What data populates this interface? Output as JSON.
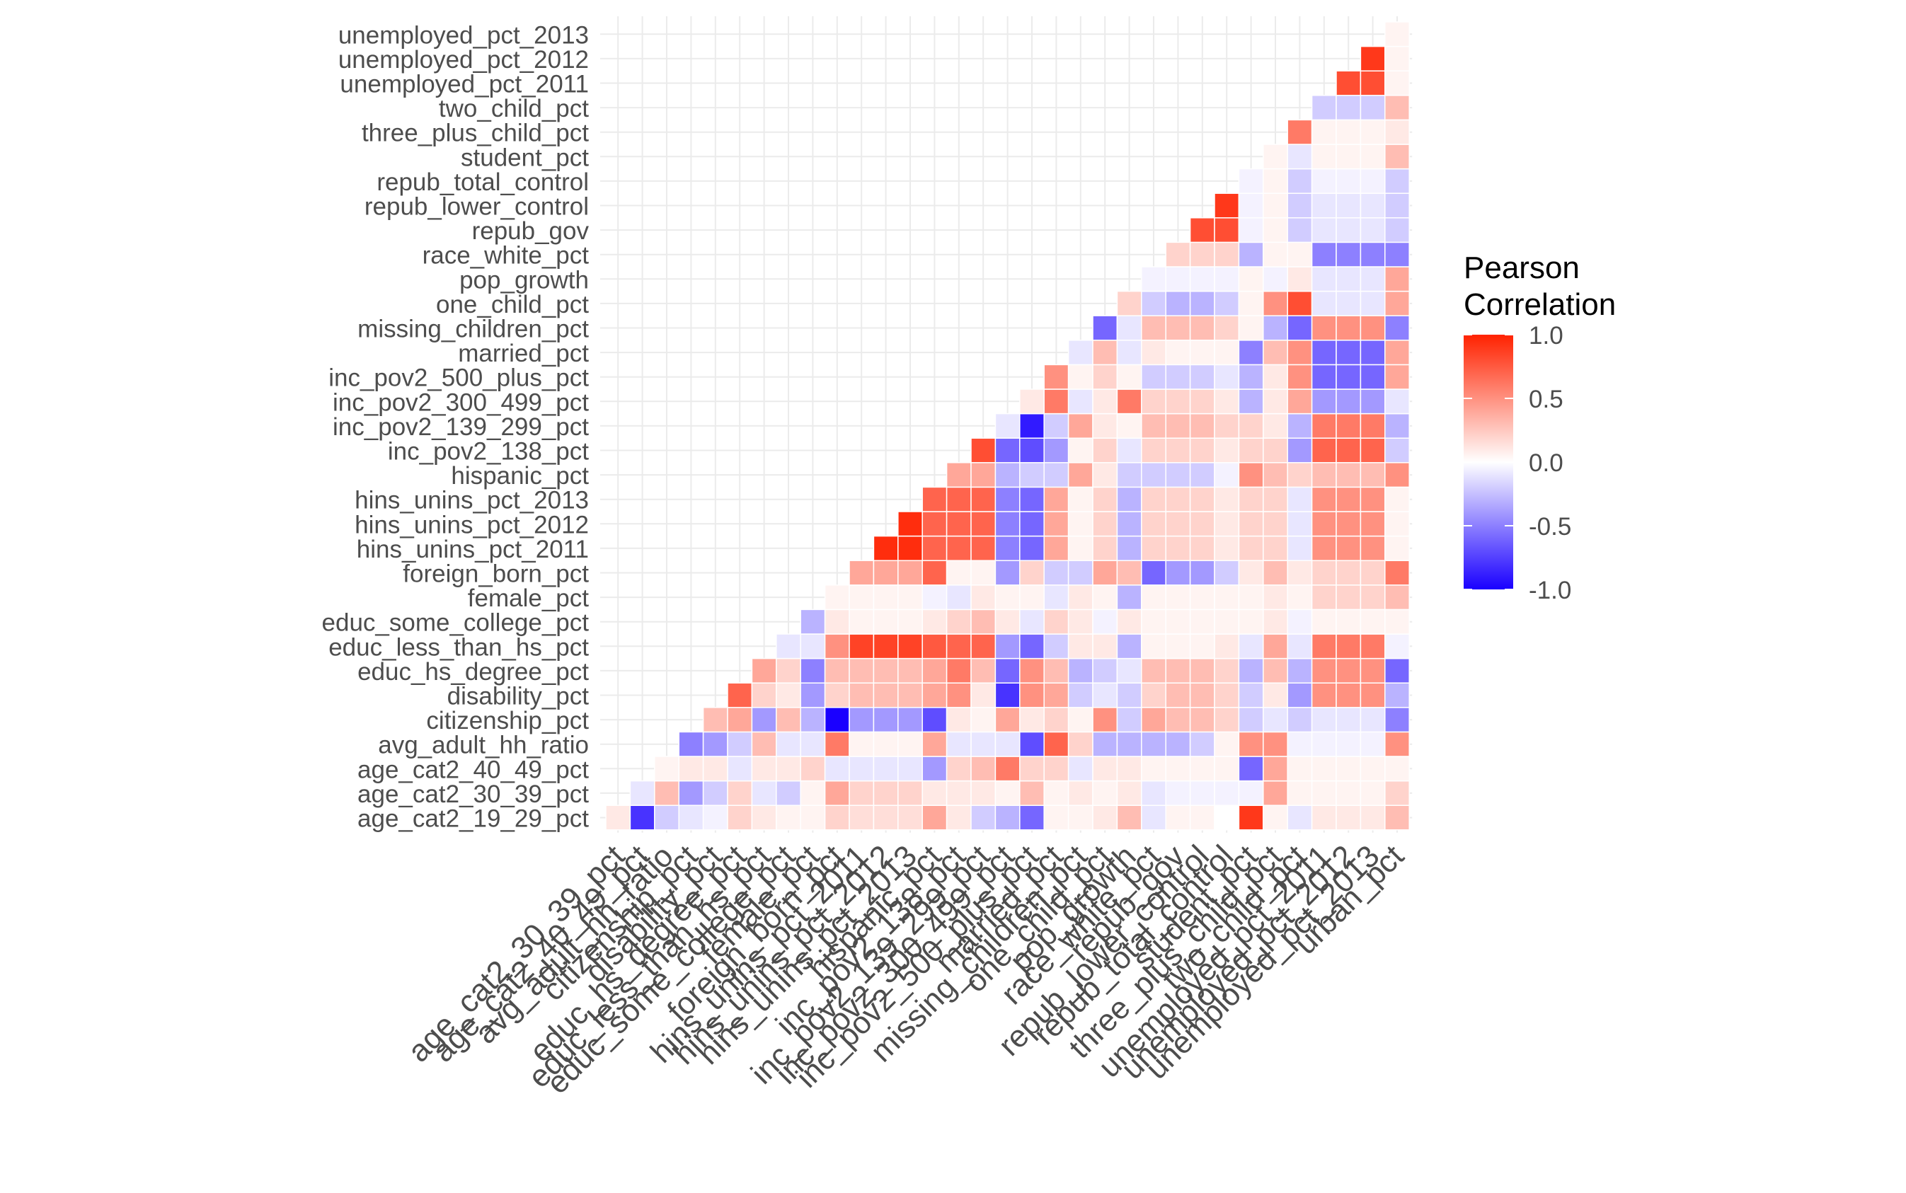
{
  "chart_data": {
    "type": "heatmap",
    "title": "",
    "xlabel": "",
    "ylabel": "",
    "legend": {
      "title_lines": [
        "Pearson",
        "Correlation"
      ],
      "ticks": [
        "1.0",
        "0.5",
        "0.0",
        "-0.5",
        "-1.0"
      ],
      "tick_values": [
        1.0,
        0.5,
        0.0,
        -0.5,
        -1.0
      ],
      "range": [
        -1,
        1
      ],
      "low_color": "#1a00ff",
      "mid_color": "#ffffff",
      "high_color": "#ff2200",
      "placement": "right"
    },
    "grid": true,
    "x_labels": [
      "age_cat2_30_39_pct",
      "age_cat2_40_49_pct",
      "avg_adult_hh_ratio",
      "citizenship_pct",
      "disability_pct",
      "educ_hs_degree_pct",
      "educ_less_than_hs_pct",
      "educ_some_college_pct",
      "female_pct",
      "foreign_born_pct",
      "hins_unins_pct_2011",
      "hins_unins_pct_2012",
      "hins_unins_pct_2013",
      "hispanic_pct",
      "inc_pov2_138_pct",
      "inc_pov2_139_299_pct",
      "inc_pov2_300_499_pct",
      "inc_pov2_500_plus_pct",
      "married_pct",
      "missing_children_pct",
      "one_child_pct",
      "pop_growth",
      "race_white_pct",
      "repub_gov",
      "repub_lower_control",
      "repub_total_control",
      "student_pct",
      "three_plus_child_pct",
      "two_child_pct",
      "unemployed_pct_2011",
      "unemployed_pct_2012",
      "unemployed_pct_2013",
      "urban_pct"
    ],
    "y_labels": [
      "age_cat2_19_29_pct",
      "age_cat2_30_39_pct",
      "age_cat2_40_49_pct",
      "avg_adult_hh_ratio",
      "citizenship_pct",
      "disability_pct",
      "educ_hs_degree_pct",
      "educ_less_than_hs_pct",
      "educ_some_college_pct",
      "female_pct",
      "foreign_born_pct",
      "hins_unins_pct_2011",
      "hins_unins_pct_2012",
      "hins_unins_pct_2013",
      "hispanic_pct",
      "inc_pov2_138_pct",
      "inc_pov2_139_299_pct",
      "inc_pov2_300_499_pct",
      "inc_pov2_500_plus_pct",
      "married_pct",
      "missing_children_pct",
      "one_child_pct",
      "pop_growth",
      "race_white_pct",
      "repub_gov",
      "repub_lower_control",
      "repub_total_control",
      "student_pct",
      "three_plus_child_pct",
      "two_child_pct",
      "unemployed_pct_2011",
      "unemployed_pct_2012",
      "unemployed_pct_2013"
    ],
    "values": [
      [
        0.1,
        -0.8,
        -0.2,
        -0.1,
        -0.05,
        0.2,
        0.1,
        0.05,
        0.05,
        0.2,
        0.15,
        0.15,
        0.15,
        0.4,
        0.1,
        -0.2,
        -0.3,
        -0.6,
        0.05,
        0.05,
        0.1,
        0.3,
        -0.1,
        0.05,
        0.05,
        0.0,
        0.9,
        0.05,
        -0.1,
        0.1,
        0.1,
        0.1,
        0.3
      ],
      [
        null,
        -0.1,
        0.3,
        -0.4,
        -0.2,
        0.2,
        -0.1,
        -0.2,
        0.05,
        0.4,
        0.2,
        0.2,
        0.2,
        0.1,
        0.1,
        0.1,
        0.05,
        0.3,
        0.05,
        0.1,
        0.05,
        0.1,
        -0.1,
        -0.05,
        -0.05,
        -0.05,
        -0.05,
        0.4,
        0.05,
        0.05,
        0.05,
        0.05,
        0.2
      ],
      [
        null,
        null,
        0.05,
        0.1,
        0.1,
        -0.1,
        0.1,
        0.1,
        0.2,
        -0.1,
        -0.1,
        -0.1,
        -0.1,
        -0.4,
        0.2,
        0.3,
        0.6,
        0.2,
        0.2,
        -0.1,
        0.1,
        0.1,
        0.05,
        0.05,
        0.05,
        0.05,
        -0.6,
        0.4,
        0.05,
        0.05,
        0.05,
        0.05,
        0.05
      ],
      [
        null,
        null,
        null,
        -0.5,
        -0.4,
        -0.2,
        0.3,
        -0.1,
        -0.1,
        0.6,
        0.05,
        0.05,
        0.05,
        0.4,
        -0.1,
        -0.1,
        -0.1,
        -0.7,
        0.7,
        0.2,
        -0.3,
        -0.3,
        -0.3,
        -0.3,
        -0.2,
        0.05,
        0.5,
        0.5,
        -0.05,
        -0.05,
        -0.05,
        -0.05,
        0.5
      ],
      [
        null,
        null,
        null,
        null,
        0.3,
        0.4,
        -0.4,
        0.3,
        -0.3,
        -1.0,
        -0.4,
        -0.4,
        -0.4,
        -0.7,
        0.1,
        0.05,
        0.4,
        0.1,
        0.2,
        0.05,
        0.5,
        -0.2,
        0.4,
        0.3,
        0.3,
        0.2,
        -0.2,
        -0.1,
        -0.2,
        -0.1,
        -0.1,
        -0.1,
        -0.5
      ],
      [
        null,
        null,
        null,
        null,
        null,
        0.7,
        0.2,
        0.1,
        -0.4,
        0.2,
        0.3,
        0.3,
        0.3,
        0.4,
        0.5,
        0.1,
        -0.8,
        0.5,
        0.4,
        -0.2,
        -0.1,
        -0.2,
        0.2,
        0.3,
        0.3,
        0.2,
        -0.2,
        0.1,
        -0.4,
        0.5,
        0.5,
        0.5,
        -0.3
      ],
      [
        null,
        null,
        null,
        null,
        null,
        null,
        0.4,
        0.2,
        -0.5,
        0.3,
        0.3,
        0.3,
        0.3,
        0.4,
        0.6,
        0.3,
        -0.6,
        0.5,
        0.3,
        -0.3,
        -0.2,
        -0.1,
        0.3,
        0.3,
        0.3,
        0.2,
        -0.3,
        0.3,
        -0.3,
        0.5,
        0.5,
        0.5,
        -0.6
      ],
      [
        null,
        null,
        null,
        null,
        null,
        null,
        null,
        -0.1,
        -0.1,
        0.5,
        0.85,
        0.85,
        0.85,
        0.75,
        0.7,
        0.7,
        -0.4,
        -0.6,
        -0.2,
        0.1,
        0.1,
        -0.3,
        0.05,
        0.05,
        0.05,
        0.1,
        -0.1,
        0.4,
        -0.1,
        0.6,
        0.6,
        0.6,
        -0.05
      ],
      [
        null,
        null,
        null,
        null,
        null,
        null,
        null,
        null,
        -0.3,
        0.1,
        0.05,
        0.05,
        0.05,
        0.1,
        0.2,
        0.3,
        0.1,
        -0.1,
        0.2,
        0.1,
        -0.05,
        0.1,
        0.05,
        0.05,
        0.05,
        0.05,
        0.05,
        0.1,
        -0.05,
        0.05,
        0.05,
        0.05,
        0.05
      ],
      [
        null,
        null,
        null,
        null,
        null,
        null,
        null,
        null,
        null,
        0.05,
        0.05,
        0.05,
        0.05,
        -0.05,
        -0.1,
        0.1,
        0.05,
        0.05,
        -0.1,
        0.1,
        0.05,
        -0.3,
        0.05,
        0.05,
        0.05,
        0.05,
        0.05,
        0.1,
        0.05,
        0.2,
        0.2,
        0.2,
        0.3
      ],
      [
        null,
        null,
        null,
        null,
        null,
        null,
        null,
        null,
        null,
        null,
        0.4,
        0.4,
        0.4,
        0.7,
        0.05,
        0.05,
        -0.4,
        0.2,
        -0.2,
        -0.2,
        0.4,
        0.3,
        -0.6,
        -0.4,
        -0.4,
        -0.2,
        0.1,
        0.3,
        0.1,
        0.2,
        0.2,
        0.2,
        0.6
      ],
      [
        null,
        null,
        null,
        null,
        null,
        null,
        null,
        null,
        null,
        null,
        null,
        0.95,
        0.95,
        0.7,
        0.7,
        0.7,
        -0.5,
        -0.6,
        0.4,
        0.05,
        0.2,
        -0.3,
        0.2,
        0.2,
        0.2,
        0.1,
        0.2,
        0.2,
        -0.1,
        0.5,
        0.5,
        0.5,
        0.05
      ],
      [
        null,
        null,
        null,
        null,
        null,
        null,
        null,
        null,
        null,
        null,
        null,
        null,
        0.95,
        0.7,
        0.7,
        0.7,
        -0.5,
        -0.6,
        0.4,
        0.05,
        0.2,
        -0.3,
        0.2,
        0.2,
        0.2,
        0.1,
        0.2,
        0.2,
        -0.1,
        0.5,
        0.5,
        0.5,
        0.05
      ],
      [
        null,
        null,
        null,
        null,
        null,
        null,
        null,
        null,
        null,
        null,
        null,
        null,
        null,
        0.7,
        0.7,
        0.7,
        -0.5,
        -0.6,
        0.4,
        0.05,
        0.2,
        -0.3,
        0.2,
        0.2,
        0.2,
        0.1,
        0.2,
        0.2,
        -0.1,
        0.5,
        0.5,
        0.5,
        0.05
      ],
      [
        null,
        null,
        null,
        null,
        null,
        null,
        null,
        null,
        null,
        null,
        null,
        null,
        null,
        null,
        0.4,
        0.4,
        -0.3,
        -0.2,
        -0.2,
        0.4,
        0.1,
        -0.2,
        -0.2,
        -0.2,
        -0.2,
        -0.05,
        0.5,
        0.3,
        0.2,
        0.3,
        0.3,
        0.3,
        0.5
      ],
      [
        null,
        null,
        null,
        null,
        null,
        null,
        null,
        null,
        null,
        null,
        null,
        null,
        null,
        null,
        null,
        0.8,
        -0.6,
        -0.7,
        -0.4,
        0.05,
        0.2,
        -0.1,
        0.2,
        0.2,
        0.2,
        0.1,
        0.2,
        0.2,
        -0.4,
        0.7,
        0.7,
        0.7,
        -0.2
      ],
      [
        null,
        null,
        null,
        null,
        null,
        null,
        null,
        null,
        null,
        null,
        null,
        null,
        null,
        null,
        null,
        null,
        -0.1,
        -0.9,
        -0.2,
        0.4,
        0.1,
        0.05,
        0.3,
        0.3,
        0.3,
        0.2,
        0.2,
        0.1,
        -0.3,
        0.6,
        0.6,
        0.6,
        -0.3
      ],
      [
        null,
        null,
        null,
        null,
        null,
        null,
        null,
        null,
        null,
        null,
        null,
        null,
        null,
        null,
        null,
        null,
        null,
        0.1,
        0.6,
        -0.1,
        0.1,
        0.6,
        0.2,
        0.2,
        0.2,
        0.1,
        -0.3,
        0.1,
        0.4,
        -0.4,
        -0.4,
        -0.4,
        -0.1
      ],
      [
        null,
        null,
        null,
        null,
        null,
        null,
        null,
        null,
        null,
        null,
        null,
        null,
        null,
        null,
        null,
        null,
        null,
        null,
        0.5,
        0.05,
        0.2,
        0.05,
        -0.2,
        -0.2,
        -0.2,
        -0.1,
        -0.3,
        0.1,
        0.5,
        -0.6,
        -0.6,
        -0.6,
        0.4
      ],
      [
        null,
        null,
        null,
        null,
        null,
        null,
        null,
        null,
        null,
        null,
        null,
        null,
        null,
        null,
        null,
        null,
        null,
        null,
        null,
        -0.1,
        0.3,
        -0.1,
        0.1,
        0.05,
        0.05,
        0.05,
        -0.5,
        0.3,
        0.5,
        -0.6,
        -0.6,
        -0.6,
        0.4
      ],
      [
        null,
        null,
        null,
        null,
        null,
        null,
        null,
        null,
        null,
        null,
        null,
        null,
        null,
        null,
        null,
        null,
        null,
        null,
        null,
        null,
        -0.6,
        -0.1,
        0.3,
        0.3,
        0.3,
        0.2,
        0.05,
        -0.3,
        -0.6,
        0.5,
        0.5,
        0.5,
        -0.5
      ],
      [
        null,
        null,
        null,
        null,
        null,
        null,
        null,
        null,
        null,
        null,
        null,
        null,
        null,
        null,
        null,
        null,
        null,
        null,
        null,
        null,
        null,
        0.2,
        -0.2,
        -0.3,
        -0.3,
        -0.2,
        0.05,
        0.5,
        0.8,
        -0.1,
        -0.1,
        -0.1,
        0.4
      ],
      [
        null,
        null,
        null,
        null,
        null,
        null,
        null,
        null,
        null,
        null,
        null,
        null,
        null,
        null,
        null,
        null,
        null,
        null,
        null,
        null,
        null,
        null,
        -0.05,
        -0.05,
        -0.05,
        -0.05,
        0.05,
        -0.05,
        0.1,
        -0.1,
        -0.1,
        -0.1,
        0.4
      ],
      [
        null,
        null,
        null,
        null,
        null,
        null,
        null,
        null,
        null,
        null,
        null,
        null,
        null,
        null,
        null,
        null,
        null,
        null,
        null,
        null,
        null,
        null,
        null,
        0.2,
        0.2,
        0.2,
        -0.3,
        0.05,
        0.05,
        -0.5,
        -0.5,
        -0.5,
        -0.5
      ],
      [
        null,
        null,
        null,
        null,
        null,
        null,
        null,
        null,
        null,
        null,
        null,
        null,
        null,
        null,
        null,
        null,
        null,
        null,
        null,
        null,
        null,
        null,
        null,
        null,
        0.8,
        0.8,
        -0.05,
        0.05,
        -0.2,
        -0.1,
        -0.1,
        -0.1,
        -0.2
      ],
      [
        null,
        null,
        null,
        null,
        null,
        null,
        null,
        null,
        null,
        null,
        null,
        null,
        null,
        null,
        null,
        null,
        null,
        null,
        null,
        null,
        null,
        null,
        null,
        null,
        null,
        0.9,
        -0.05,
        0.05,
        -0.2,
        -0.1,
        -0.1,
        -0.1,
        -0.2
      ],
      [
        null,
        null,
        null,
        null,
        null,
        null,
        null,
        null,
        null,
        null,
        null,
        null,
        null,
        null,
        null,
        null,
        null,
        null,
        null,
        null,
        null,
        null,
        null,
        null,
        null,
        null,
        -0.05,
        0.05,
        -0.2,
        -0.05,
        -0.05,
        -0.05,
        -0.2
      ],
      [
        null,
        null,
        null,
        null,
        null,
        null,
        null,
        null,
        null,
        null,
        null,
        null,
        null,
        null,
        null,
        null,
        null,
        null,
        null,
        null,
        null,
        null,
        null,
        null,
        null,
        null,
        null,
        0.05,
        -0.1,
        0.05,
        0.05,
        0.05,
        0.3
      ],
      [
        null,
        null,
        null,
        null,
        null,
        null,
        null,
        null,
        null,
        null,
        null,
        null,
        null,
        null,
        null,
        null,
        null,
        null,
        null,
        null,
        null,
        null,
        null,
        null,
        null,
        null,
        null,
        null,
        0.6,
        0.05,
        0.05,
        0.05,
        0.1
      ],
      [
        null,
        null,
        null,
        null,
        null,
        null,
        null,
        null,
        null,
        null,
        null,
        null,
        null,
        null,
        null,
        null,
        null,
        null,
        null,
        null,
        null,
        null,
        null,
        null,
        null,
        null,
        null,
        null,
        null,
        -0.2,
        -0.2,
        -0.2,
        0.3
      ],
      [
        null,
        null,
        null,
        null,
        null,
        null,
        null,
        null,
        null,
        null,
        null,
        null,
        null,
        null,
        null,
        null,
        null,
        null,
        null,
        null,
        null,
        null,
        null,
        null,
        null,
        null,
        null,
        null,
        null,
        null,
        0.8,
        0.8,
        0.05
      ],
      [
        null,
        null,
        null,
        null,
        null,
        null,
        null,
        null,
        null,
        null,
        null,
        null,
        null,
        null,
        null,
        null,
        null,
        null,
        null,
        null,
        null,
        null,
        null,
        null,
        null,
        null,
        null,
        null,
        null,
        null,
        null,
        0.9,
        0.05
      ],
      [
        null,
        null,
        null,
        null,
        null,
        null,
        null,
        null,
        null,
        null,
        null,
        null,
        null,
        null,
        null,
        null,
        null,
        null,
        null,
        null,
        null,
        null,
        null,
        null,
        null,
        null,
        null,
        null,
        null,
        null,
        null,
        null,
        0.05
      ]
    ]
  }
}
